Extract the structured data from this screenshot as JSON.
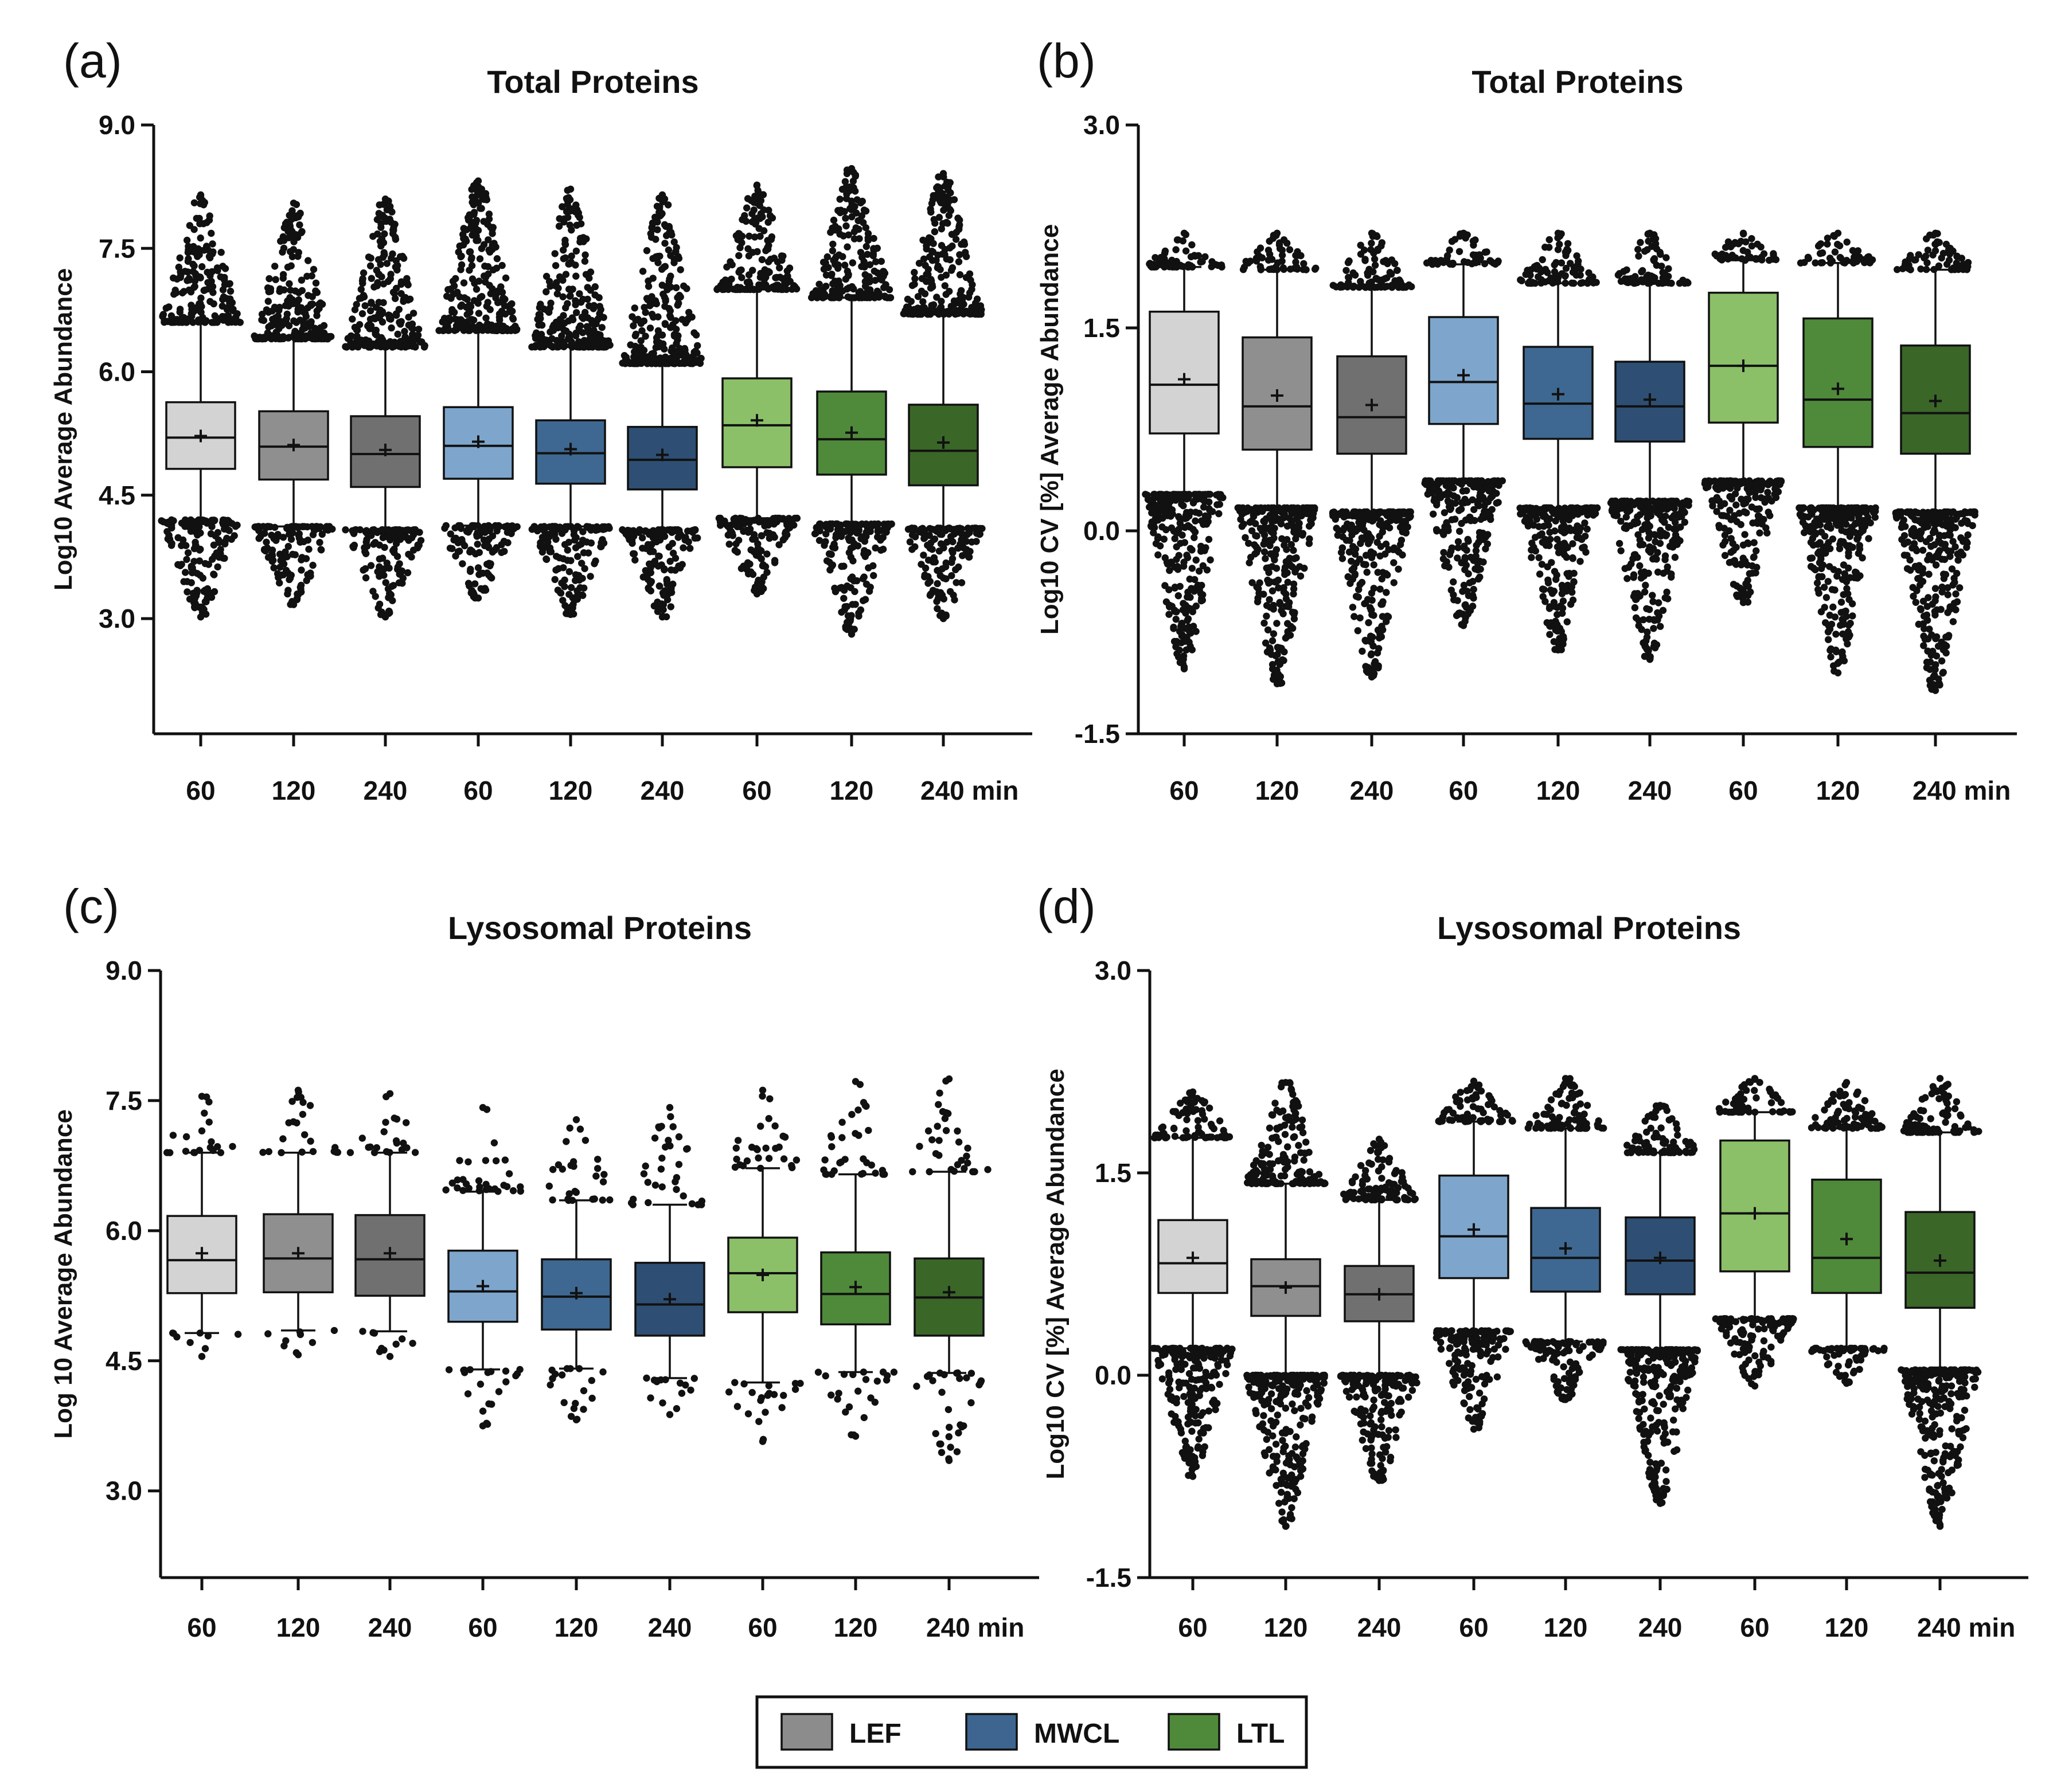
{
  "figure": {
    "legend": [
      {
        "label": "LEF",
        "color": "#8c8c8c"
      },
      {
        "label": "MWCL",
        "color": "#3d6590"
      },
      {
        "label": "LTL",
        "color": "#4f8a3a"
      }
    ]
  },
  "chart_data": [
    {
      "type": "box",
      "panel": "(a)",
      "title": "Total Proteins",
      "ylabel": "Log10 Average Abundance",
      "xlabel": "",
      "ylim": [
        1.6,
        9.0
      ],
      "yticks": [
        3.0,
        4.5,
        6.0,
        7.5,
        9.0
      ],
      "ytick_labels": [
        "3.0",
        "4.5",
        "6.0",
        "7.5",
        "9.0"
      ],
      "categories": [
        "60",
        "120",
        "240",
        "60",
        "120",
        "240",
        "60",
        "120",
        "240 min"
      ],
      "groups": [
        "LEF",
        "LEF",
        "LEF",
        "MWCL",
        "MWCL",
        "MWCL",
        "LTL",
        "LTL",
        "LTL"
      ],
      "colors": [
        "#d3d3d3",
        "#8f8f8f",
        "#707070",
        "#7ea6cc",
        "#3e6891",
        "#2e4f73",
        "#8cc068",
        "#4f8a3a",
        "#3a6628"
      ],
      "series": [
        {
          "name": "box",
          "q1": [
            4.82,
            4.69,
            4.6,
            4.7,
            4.64,
            4.57,
            4.84,
            4.75,
            4.62
          ],
          "median": [
            5.2,
            5.09,
            5.0,
            5.1,
            5.01,
            4.93,
            5.35,
            5.18,
            5.04
          ],
          "q3": [
            5.63,
            5.52,
            5.46,
            5.57,
            5.41,
            5.33,
            5.92,
            5.76,
            5.6
          ],
          "whisker_low": [
            4.2,
            4.12,
            4.08,
            4.13,
            4.12,
            4.08,
            4.22,
            4.15,
            4.1
          ],
          "whisker_high": [
            6.6,
            6.4,
            6.3,
            6.5,
            6.3,
            6.1,
            7.0,
            6.9,
            6.7
          ],
          "mean": [
            5.22,
            5.11,
            5.05,
            5.15,
            5.06,
            4.99,
            5.41,
            5.26,
            5.14
          ],
          "out_low_min": [
            3.02,
            3.17,
            3.02,
            3.25,
            3.05,
            3.02,
            3.3,
            2.81,
            3.0
          ],
          "out_high_max": [
            8.15,
            8.05,
            8.1,
            8.32,
            8.22,
            8.15,
            8.27,
            8.47,
            8.41
          ]
        }
      ]
    },
    {
      "type": "box",
      "panel": "(b)",
      "title": "Total Proteins",
      "ylabel": "Log10 CV [%] Average Abundance",
      "xlabel": "",
      "ylim": [
        -1.5,
        3.0
      ],
      "yticks": [
        -1.5,
        0.0,
        1.5,
        3.0
      ],
      "ytick_labels": [
        "-1.5",
        "0.0",
        "1.5",
        "3.0"
      ],
      "categories": [
        "60",
        "120",
        "240",
        "60",
        "120",
        "240",
        "60",
        "120",
        "240 min"
      ],
      "groups": [
        "LEF",
        "LEF",
        "LEF",
        "MWCL",
        "MWCL",
        "MWCL",
        "LTL",
        "LTL",
        "LTL"
      ],
      "colors": [
        "#d3d3d3",
        "#8f8f8f",
        "#707070",
        "#7ea6cc",
        "#3e6891",
        "#2e4f73",
        "#8cc068",
        "#4f8a3a",
        "#3a6628"
      ],
      "series": [
        {
          "name": "box",
          "q1": [
            0.72,
            0.6,
            0.57,
            0.79,
            0.68,
            0.66,
            0.8,
            0.62,
            0.57
          ],
          "median": [
            1.08,
            0.92,
            0.84,
            1.1,
            0.94,
            0.92,
            1.22,
            0.97,
            0.87
          ],
          "q3": [
            1.62,
            1.43,
            1.29,
            1.58,
            1.36,
            1.25,
            1.76,
            1.57,
            1.37
          ],
          "whisker_low": [
            0.27,
            0.17,
            0.14,
            0.37,
            0.17,
            0.22,
            0.37,
            0.17,
            0.14
          ],
          "whisker_high": [
            1.95,
            1.93,
            1.8,
            1.97,
            1.83,
            1.83,
            2.0,
            1.98,
            1.93
          ],
          "mean": [
            1.12,
            1.0,
            0.93,
            1.15,
            1.01,
            0.97,
            1.22,
            1.05,
            0.96
          ],
          "out_low_min": [
            -1.02,
            -1.13,
            -1.08,
            -0.7,
            -0.88,
            -0.95,
            -0.53,
            -1.05,
            -1.18
          ],
          "out_high_max": [
            2.2,
            2.2,
            2.2,
            2.2,
            2.2,
            2.2,
            2.2,
            2.2,
            2.2
          ]
        }
      ]
    },
    {
      "type": "box",
      "panel": "(c)",
      "title": "Lysosomal Proteins",
      "ylabel": "Log 10 Average Abundance",
      "xlabel": "",
      "ylim": [
        2.0,
        9.0
      ],
      "yticks": [
        3.0,
        4.5,
        6.0,
        7.5,
        9.0
      ],
      "ytick_labels": [
        "3.0",
        "4.5",
        "6.0",
        "7.5",
        "9.0"
      ],
      "categories": [
        "60",
        "120",
        "240",
        "60",
        "120",
        "240",
        "60",
        "120",
        "240 min"
      ],
      "groups": [
        "LEF",
        "LEF",
        "LEF",
        "MWCL",
        "MWCL",
        "MWCL",
        "LTL",
        "LTL",
        "LTL"
      ],
      "colors": [
        "#d3d3d3",
        "#8f8f8f",
        "#707070",
        "#7ea6cc",
        "#3e6891",
        "#2e4f73",
        "#8cc068",
        "#4f8a3a",
        "#3a6628"
      ],
      "series": [
        {
          "name": "box",
          "q1": [
            5.28,
            5.29,
            5.25,
            4.95,
            4.86,
            4.79,
            5.06,
            4.92,
            4.79
          ],
          "median": [
            5.66,
            5.68,
            5.67,
            5.3,
            5.24,
            5.15,
            5.51,
            5.27,
            5.23
          ],
          "q3": [
            6.17,
            6.19,
            6.18,
            5.77,
            5.67,
            5.63,
            5.92,
            5.75,
            5.68
          ],
          "whisker_low": [
            4.82,
            4.85,
            4.84,
            4.4,
            4.41,
            4.3,
            4.25,
            4.37,
            4.36
          ],
          "whisker_high": [
            6.9,
            6.9,
            6.9,
            6.45,
            6.35,
            6.3,
            6.72,
            6.65,
            6.68
          ],
          "mean": [
            5.74,
            5.74,
            5.74,
            5.36,
            5.28,
            5.21,
            5.49,
            5.35,
            5.29
          ],
          "out_low_min": [
            4.55,
            4.57,
            4.55,
            3.75,
            3.82,
            3.88,
            3.57,
            3.63,
            3.35
          ],
          "out_high_max": [
            7.55,
            7.62,
            7.58,
            7.42,
            7.28,
            7.42,
            7.62,
            7.72,
            7.75
          ]
        }
      ]
    },
    {
      "type": "box",
      "panel": "(d)",
      "title": "Lysosomal Proteins",
      "ylabel": "Log10 CV [%] Average Abundance",
      "xlabel": "",
      "ylim": [
        -1.5,
        3.0
      ],
      "yticks": [
        -1.5,
        0.0,
        1.5,
        3.0
      ],
      "ytick_labels": [
        "-1.5",
        "0.0",
        "1.5",
        "3.0"
      ],
      "categories": [
        "60",
        "120",
        "240",
        "60",
        "120",
        "240",
        "60",
        "120",
        "240 min"
      ],
      "groups": [
        "LEF",
        "LEF",
        "LEF",
        "MWCL",
        "MWCL",
        "MWCL",
        "LTL",
        "LTL",
        "LTL"
      ],
      "colors": [
        "#d3d3d3",
        "#8f8f8f",
        "#707070",
        "#7ea6cc",
        "#3e6891",
        "#2e4f73",
        "#8cc068",
        "#4f8a3a",
        "#3a6628"
      ],
      "series": [
        {
          "name": "box",
          "q1": [
            0.61,
            0.44,
            0.4,
            0.72,
            0.62,
            0.6,
            0.77,
            0.61,
            0.5
          ],
          "median": [
            0.83,
            0.66,
            0.6,
            1.03,
            0.87,
            0.85,
            1.2,
            0.87,
            0.76
          ],
          "q3": [
            1.15,
            0.86,
            0.81,
            1.48,
            1.24,
            1.17,
            1.74,
            1.45,
            1.21
          ],
          "whisker_low": [
            0.2,
            0.0,
            0.0,
            0.33,
            0.25,
            0.19,
            0.42,
            0.2,
            0.04
          ],
          "whisker_high": [
            1.76,
            1.42,
            1.3,
            1.88,
            1.83,
            1.65,
            1.95,
            1.83,
            1.8
          ],
          "mean": [
            0.87,
            0.65,
            0.6,
            1.08,
            0.94,
            0.87,
            1.2,
            1.01,
            0.85
          ],
          "out_low_min": [
            -0.75,
            -1.12,
            -0.78,
            -0.4,
            -0.18,
            -0.95,
            -0.08,
            -0.06,
            -1.12
          ],
          "out_high_max": [
            2.1,
            2.17,
            1.75,
            2.18,
            2.2,
            2.0,
            2.2,
            2.17,
            2.2
          ]
        }
      ]
    }
  ]
}
